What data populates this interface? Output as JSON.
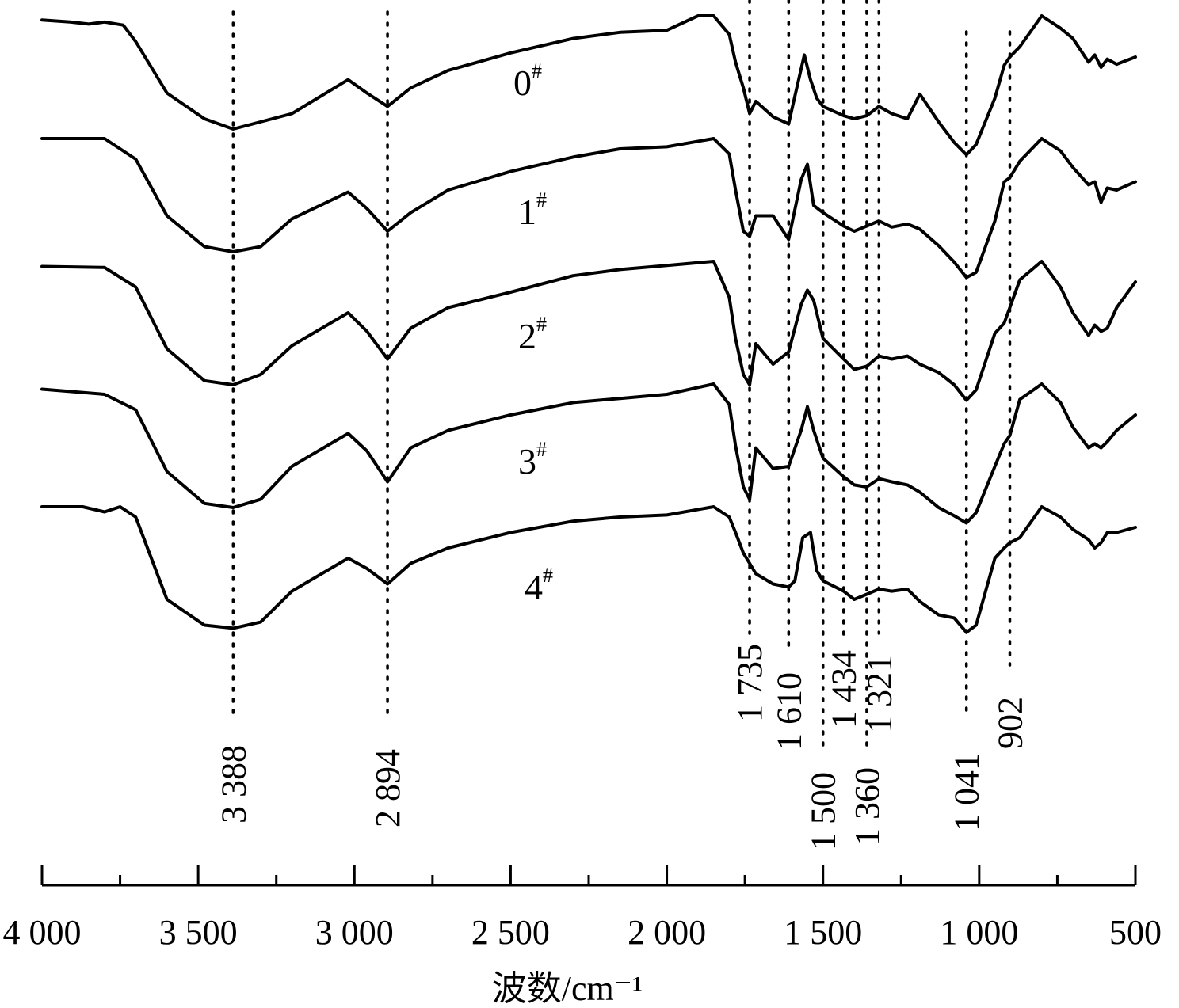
{
  "chart_data": {
    "type": "line",
    "xlabel": "波数/cm⁻¹",
    "xlim": [
      4000,
      500
    ],
    "x_reversed": true,
    "ticks": [
      {
        "value": 4000,
        "label": "4 000"
      },
      {
        "value": 3500,
        "label": "3 500"
      },
      {
        "value": 3000,
        "label": "3 000"
      },
      {
        "value": 2500,
        "label": "2 500"
      },
      {
        "value": 2000,
        "label": "2 000"
      },
      {
        "value": 1500,
        "label": "1 500"
      },
      {
        "value": 1000,
        "label": "1 000"
      },
      {
        "value": 500,
        "label": "500"
      }
    ],
    "minor_ticks": [
      3750,
      3250,
      2750,
      2250,
      1750,
      1250,
      750
    ],
    "grid": false,
    "peak_lines": [
      {
        "x": 3388,
        "label": "3 388"
      },
      {
        "x": 2894,
        "label": "2 894"
      },
      {
        "x": 1735,
        "label": "1 735"
      },
      {
        "x": 1610,
        "label": "1 610"
      },
      {
        "x": 1500,
        "label": "1 500"
      },
      {
        "x": 1434,
        "label": "1 434"
      },
      {
        "x": 1360,
        "label": "1 360"
      },
      {
        "x": 1321,
        "label": "1 321"
      },
      {
        "x": 1041,
        "label": "1 041"
      },
      {
        "x": 902,
        "label": "902"
      }
    ],
    "series": [
      {
        "name": "0",
        "sup": "#",
        "x": [
          4000,
          3910,
          3850,
          3800,
          3740,
          3700,
          3600,
          3480,
          3388,
          3200,
          3020,
          2960,
          2894,
          2820,
          2700,
          2500,
          2300,
          2150,
          2000,
          1900,
          1850,
          1800,
          1780,
          1755,
          1735,
          1715,
          1660,
          1610,
          1590,
          1560,
          1540,
          1520,
          1500,
          1434,
          1400,
          1360,
          1321,
          1280,
          1230,
          1190,
          1130,
          1080,
          1041,
          1010,
          950,
          920,
          902,
          870,
          800,
          740,
          700,
          650,
          630,
          610,
          590,
          560,
          500
        ],
        "y": [
          0.04,
          0.06,
          0.08,
          0.06,
          0.09,
          0.25,
          0.75,
          1.0,
          1.1,
          0.95,
          0.62,
          0.75,
          0.88,
          0.7,
          0.53,
          0.36,
          0.22,
          0.16,
          0.14,
          0.0,
          0.0,
          0.18,
          0.45,
          0.7,
          0.95,
          0.83,
          0.98,
          1.05,
          0.78,
          0.38,
          0.62,
          0.8,
          0.88,
          0.97,
          1.0,
          0.97,
          0.88,
          0.95,
          1.0,
          0.76,
          1.03,
          1.23,
          1.35,
          1.25,
          0.8,
          0.48,
          0.4,
          0.3,
          0.0,
          0.12,
          0.22,
          0.45,
          0.38,
          0.5,
          0.42,
          0.47,
          0.4
        ],
        "offset": 0
      },
      {
        "name": "1",
        "sup": "#",
        "x": [
          4000,
          3800,
          3700,
          3600,
          3480,
          3388,
          3300,
          3200,
          3020,
          2960,
          2894,
          2820,
          2700,
          2500,
          2300,
          2150,
          2000,
          1850,
          1800,
          1780,
          1755,
          1735,
          1715,
          1660,
          1610,
          1570,
          1550,
          1530,
          1500,
          1434,
          1400,
          1360,
          1321,
          1280,
          1230,
          1190,
          1130,
          1080,
          1041,
          1010,
          950,
          920,
          902,
          870,
          800,
          740,
          700,
          650,
          630,
          610,
          590,
          560,
          500
        ],
        "y": [
          0.0,
          0.0,
          0.2,
          0.75,
          1.05,
          1.1,
          1.05,
          0.78,
          0.52,
          0.68,
          0.9,
          0.72,
          0.5,
          0.32,
          0.18,
          0.1,
          0.08,
          0.0,
          0.15,
          0.5,
          0.9,
          0.95,
          0.75,
          0.75,
          0.98,
          0.4,
          0.25,
          0.65,
          0.72,
          0.85,
          0.9,
          0.85,
          0.8,
          0.86,
          0.83,
          0.88,
          1.04,
          1.2,
          1.35,
          1.3,
          0.8,
          0.42,
          0.38,
          0.22,
          0.0,
          0.12,
          0.28,
          0.45,
          0.42,
          0.62,
          0.48,
          0.5,
          0.42
        ],
        "offset": 1
      },
      {
        "name": "2",
        "sup": "#",
        "x": [
          4000,
          3800,
          3700,
          3600,
          3480,
          3388,
          3300,
          3200,
          3020,
          2960,
          2894,
          2820,
          2700,
          2500,
          2300,
          2150,
          2000,
          1850,
          1800,
          1780,
          1755,
          1735,
          1715,
          1660,
          1610,
          1570,
          1550,
          1530,
          1500,
          1434,
          1400,
          1360,
          1321,
          1280,
          1230,
          1190,
          1130,
          1080,
          1041,
          1010,
          950,
          920,
          902,
          870,
          800,
          740,
          700,
          650,
          630,
          610,
          590,
          560,
          500
        ],
        "y": [
          0.05,
          0.06,
          0.25,
          0.85,
          1.16,
          1.2,
          1.1,
          0.82,
          0.5,
          0.68,
          0.95,
          0.65,
          0.45,
          0.3,
          0.14,
          0.08,
          0.04,
          0.0,
          0.35,
          0.75,
          1.1,
          1.2,
          0.8,
          1.0,
          0.88,
          0.42,
          0.28,
          0.38,
          0.75,
          0.95,
          1.05,
          1.02,
          0.92,
          0.95,
          0.92,
          1.0,
          1.08,
          1.2,
          1.35,
          1.25,
          0.7,
          0.6,
          0.45,
          0.18,
          0.0,
          0.25,
          0.5,
          0.72,
          0.62,
          0.68,
          0.65,
          0.45,
          0.2
        ],
        "offset": 2
      },
      {
        "name": "3",
        "sup": "#",
        "x": [
          4000,
          3800,
          3700,
          3600,
          3480,
          3388,
          3300,
          3200,
          3020,
          2960,
          2894,
          2820,
          2700,
          2500,
          2300,
          2150,
          2000,
          1850,
          1800,
          1780,
          1755,
          1735,
          1715,
          1660,
          1610,
          1570,
          1550,
          1530,
          1500,
          1434,
          1400,
          1360,
          1321,
          1280,
          1230,
          1190,
          1130,
          1080,
          1041,
          1010,
          950,
          920,
          902,
          870,
          800,
          740,
          700,
          650,
          630,
          610,
          590,
          560,
          500
        ],
        "y": [
          0.05,
          0.1,
          0.25,
          0.85,
          1.16,
          1.2,
          1.12,
          0.8,
          0.48,
          0.65,
          0.95,
          0.62,
          0.45,
          0.3,
          0.18,
          0.14,
          0.1,
          0.0,
          0.2,
          0.6,
          1.0,
          1.12,
          0.62,
          0.82,
          0.8,
          0.45,
          0.22,
          0.45,
          0.72,
          0.9,
          0.98,
          1.0,
          0.92,
          0.95,
          0.98,
          1.05,
          1.2,
          1.28,
          1.35,
          1.25,
          0.8,
          0.58,
          0.5,
          0.15,
          0.0,
          0.18,
          0.42,
          0.62,
          0.58,
          0.62,
          0.56,
          0.45,
          0.3
        ],
        "offset": 3
      },
      {
        "name": "4",
        "sup": "#",
        "x": [
          4000,
          3870,
          3800,
          3750,
          3700,
          3600,
          3480,
          3388,
          3300,
          3200,
          3020,
          2960,
          2894,
          2820,
          2700,
          2500,
          2300,
          2150,
          2000,
          1850,
          1800,
          1780,
          1755,
          1735,
          1715,
          1660,
          1610,
          1590,
          1565,
          1540,
          1520,
          1500,
          1434,
          1400,
          1360,
          1321,
          1280,
          1230,
          1190,
          1130,
          1080,
          1041,
          1010,
          950,
          920,
          902,
          870,
          800,
          740,
          700,
          650,
          630,
          610,
          590,
          560,
          500
        ],
        "y": [
          0.0,
          0.0,
          0.05,
          0.0,
          0.1,
          0.9,
          1.15,
          1.18,
          1.12,
          0.82,
          0.5,
          0.6,
          0.75,
          0.55,
          0.4,
          0.25,
          0.14,
          0.1,
          0.08,
          0.0,
          0.1,
          0.25,
          0.45,
          0.55,
          0.65,
          0.75,
          0.78,
          0.72,
          0.3,
          0.25,
          0.62,
          0.72,
          0.82,
          0.9,
          0.85,
          0.8,
          0.82,
          0.8,
          0.92,
          1.05,
          1.08,
          1.22,
          1.15,
          0.5,
          0.4,
          0.35,
          0.3,
          0.0,
          0.1,
          0.22,
          0.32,
          0.4,
          0.35,
          0.25,
          0.25,
          0.2
        ],
        "offset": 4
      }
    ]
  }
}
